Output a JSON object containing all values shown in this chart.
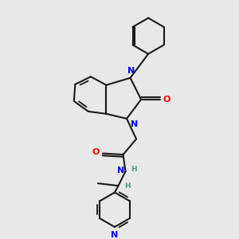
{
  "background_color": "#e8e8e8",
  "bond_color": "#1a1a1a",
  "atom_colors": {
    "N": "#0000ff",
    "O": "#ff0000",
    "H": "#4a9a8a",
    "C": "#1a1a1a"
  },
  "figsize": [
    3.0,
    3.0
  ],
  "dpi": 100
}
